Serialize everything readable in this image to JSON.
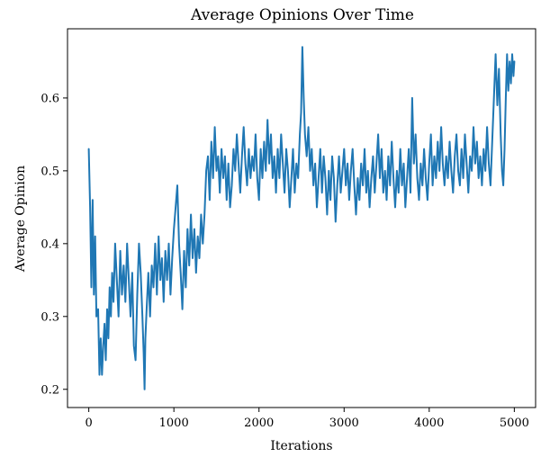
{
  "chart_data": {
    "type": "line",
    "title": "Average Opinions Over Time",
    "xlabel": "Iterations",
    "ylabel": "Average Opinion",
    "xlim": [
      -250,
      5250
    ],
    "ylim": [
      0.175,
      0.695
    ],
    "xticks": [
      0,
      1000,
      2000,
      3000,
      4000,
      5000
    ],
    "yticks": [
      0.2,
      0.3,
      0.4,
      0.5,
      0.6
    ],
    "ytick_labels": [
      "0.2",
      "0.3",
      "0.4",
      "0.5",
      "0.6"
    ],
    "grid": false,
    "series": [
      {
        "color": "#1f77b4",
        "points": [
          [
            0,
            0.53
          ],
          [
            15,
            0.45
          ],
          [
            30,
            0.34
          ],
          [
            45,
            0.46
          ],
          [
            60,
            0.33
          ],
          [
            75,
            0.41
          ],
          [
            90,
            0.3
          ],
          [
            110,
            0.31
          ],
          [
            125,
            0.22
          ],
          [
            140,
            0.27
          ],
          [
            155,
            0.22
          ],
          [
            170,
            0.26
          ],
          [
            185,
            0.29
          ],
          [
            200,
            0.24
          ],
          [
            215,
            0.31
          ],
          [
            230,
            0.27
          ],
          [
            245,
            0.34
          ],
          [
            260,
            0.3
          ],
          [
            275,
            0.36
          ],
          [
            290,
            0.32
          ],
          [
            310,
            0.4
          ],
          [
            330,
            0.35
          ],
          [
            350,
            0.3
          ],
          [
            370,
            0.39
          ],
          [
            390,
            0.33
          ],
          [
            410,
            0.37
          ],
          [
            430,
            0.32
          ],
          [
            450,
            0.4
          ],
          [
            470,
            0.35
          ],
          [
            490,
            0.3
          ],
          [
            510,
            0.36
          ],
          [
            530,
            0.26
          ],
          [
            550,
            0.24
          ],
          [
            570,
            0.33
          ],
          [
            590,
            0.4
          ],
          [
            610,
            0.36
          ],
          [
            630,
            0.3
          ],
          [
            645,
            0.25
          ],
          [
            655,
            0.2
          ],
          [
            665,
            0.27
          ],
          [
            680,
            0.31
          ],
          [
            700,
            0.36
          ],
          [
            720,
            0.3
          ],
          [
            740,
            0.37
          ],
          [
            760,
            0.34
          ],
          [
            780,
            0.4
          ],
          [
            800,
            0.33
          ],
          [
            820,
            0.41
          ],
          [
            840,
            0.35
          ],
          [
            860,
            0.38
          ],
          [
            880,
            0.32
          ],
          [
            900,
            0.39
          ],
          [
            920,
            0.35
          ],
          [
            940,
            0.4
          ],
          [
            960,
            0.33
          ],
          [
            980,
            0.38
          ],
          [
            1000,
            0.42
          ],
          [
            1020,
            0.45
          ],
          [
            1040,
            0.48
          ],
          [
            1060,
            0.4
          ],
          [
            1080,
            0.36
          ],
          [
            1100,
            0.31
          ],
          [
            1120,
            0.39
          ],
          [
            1140,
            0.34
          ],
          [
            1160,
            0.42
          ],
          [
            1180,
            0.37
          ],
          [
            1200,
            0.44
          ],
          [
            1220,
            0.38
          ],
          [
            1240,
            0.42
          ],
          [
            1260,
            0.36
          ],
          [
            1280,
            0.41
          ],
          [
            1300,
            0.38
          ],
          [
            1320,
            0.44
          ],
          [
            1340,
            0.4
          ],
          [
            1360,
            0.44
          ],
          [
            1380,
            0.5
          ],
          [
            1400,
            0.52
          ],
          [
            1420,
            0.46
          ],
          [
            1440,
            0.54
          ],
          [
            1460,
            0.49
          ],
          [
            1480,
            0.56
          ],
          [
            1500,
            0.5
          ],
          [
            1520,
            0.52
          ],
          [
            1540,
            0.47
          ],
          [
            1560,
            0.53
          ],
          [
            1580,
            0.49
          ],
          [
            1600,
            0.52
          ],
          [
            1620,
            0.46
          ],
          [
            1640,
            0.51
          ],
          [
            1660,
            0.45
          ],
          [
            1680,
            0.48
          ],
          [
            1700,
            0.53
          ],
          [
            1720,
            0.5
          ],
          [
            1740,
            0.55
          ],
          [
            1760,
            0.51
          ],
          [
            1780,
            0.47
          ],
          [
            1800,
            0.52
          ],
          [
            1820,
            0.56
          ],
          [
            1840,
            0.51
          ],
          [
            1860,
            0.48
          ],
          [
            1880,
            0.53
          ],
          [
            1900,
            0.49
          ],
          [
            1920,
            0.52
          ],
          [
            1940,
            0.5
          ],
          [
            1960,
            0.55
          ],
          [
            1980,
            0.49
          ],
          [
            2000,
            0.46
          ],
          [
            2020,
            0.53
          ],
          [
            2040,
            0.49
          ],
          [
            2060,
            0.54
          ],
          [
            2080,
            0.5
          ],
          [
            2100,
            0.57
          ],
          [
            2120,
            0.51
          ],
          [
            2140,
            0.55
          ],
          [
            2160,
            0.49
          ],
          [
            2180,
            0.52
          ],
          [
            2200,
            0.47
          ],
          [
            2220,
            0.53
          ],
          [
            2240,
            0.49
          ],
          [
            2260,
            0.55
          ],
          [
            2280,
            0.51
          ],
          [
            2300,
            0.47
          ],
          [
            2320,
            0.53
          ],
          [
            2340,
            0.5
          ],
          [
            2360,
            0.45
          ],
          [
            2380,
            0.49
          ],
          [
            2400,
            0.53
          ],
          [
            2420,
            0.47
          ],
          [
            2440,
            0.51
          ],
          [
            2460,
            0.49
          ],
          [
            2480,
            0.55
          ],
          [
            2495,
            0.58
          ],
          [
            2510,
            0.67
          ],
          [
            2525,
            0.6
          ],
          [
            2540,
            0.55
          ],
          [
            2560,
            0.52
          ],
          [
            2580,
            0.56
          ],
          [
            2600,
            0.5
          ],
          [
            2620,
            0.53
          ],
          [
            2640,
            0.48
          ],
          [
            2660,
            0.51
          ],
          [
            2680,
            0.45
          ],
          [
            2700,
            0.49
          ],
          [
            2720,
            0.53
          ],
          [
            2740,
            0.47
          ],
          [
            2760,
            0.52
          ],
          [
            2780,
            0.49
          ],
          [
            2800,
            0.44
          ],
          [
            2820,
            0.5
          ],
          [
            2840,
            0.46
          ],
          [
            2860,
            0.52
          ],
          [
            2880,
            0.49
          ],
          [
            2900,
            0.43
          ],
          [
            2920,
            0.48
          ],
          [
            2940,
            0.52
          ],
          [
            2960,
            0.47
          ],
          [
            2980,
            0.5
          ],
          [
            3000,
            0.53
          ],
          [
            3020,
            0.48
          ],
          [
            3040,
            0.51
          ],
          [
            3060,
            0.46
          ],
          [
            3080,
            0.5
          ],
          [
            3100,
            0.53
          ],
          [
            3120,
            0.48
          ],
          [
            3140,
            0.44
          ],
          [
            3160,
            0.49
          ],
          [
            3180,
            0.46
          ],
          [
            3200,
            0.51
          ],
          [
            3220,
            0.48
          ],
          [
            3240,
            0.53
          ],
          [
            3260,
            0.47
          ],
          [
            3280,
            0.5
          ],
          [
            3300,
            0.45
          ],
          [
            3320,
            0.49
          ],
          [
            3340,
            0.52
          ],
          [
            3360,
            0.47
          ],
          [
            3380,
            0.51
          ],
          [
            3400,
            0.55
          ],
          [
            3420,
            0.49
          ],
          [
            3440,
            0.53
          ],
          [
            3460,
            0.47
          ],
          [
            3480,
            0.5
          ],
          [
            3500,
            0.46
          ],
          [
            3520,
            0.52
          ],
          [
            3540,
            0.48
          ],
          [
            3560,
            0.54
          ],
          [
            3580,
            0.49
          ],
          [
            3600,
            0.45
          ],
          [
            3620,
            0.5
          ],
          [
            3640,
            0.47
          ],
          [
            3660,
            0.53
          ],
          [
            3680,
            0.48
          ],
          [
            3700,
            0.51
          ],
          [
            3720,
            0.45
          ],
          [
            3740,
            0.49
          ],
          [
            3760,
            0.53
          ],
          [
            3780,
            0.47
          ],
          [
            3800,
            0.6
          ],
          [
            3820,
            0.51
          ],
          [
            3840,
            0.55
          ],
          [
            3860,
            0.49
          ],
          [
            3880,
            0.46
          ],
          [
            3900,
            0.51
          ],
          [
            3920,
            0.48
          ],
          [
            3940,
            0.53
          ],
          [
            3960,
            0.49
          ],
          [
            3980,
            0.46
          ],
          [
            4000,
            0.51
          ],
          [
            4020,
            0.55
          ],
          [
            4040,
            0.48
          ],
          [
            4060,
            0.52
          ],
          [
            4080,
            0.49
          ],
          [
            4100,
            0.54
          ],
          [
            4120,
            0.5
          ],
          [
            4140,
            0.56
          ],
          [
            4160,
            0.51
          ],
          [
            4180,
            0.48
          ],
          [
            4200,
            0.52
          ],
          [
            4220,
            0.49
          ],
          [
            4240,
            0.54
          ],
          [
            4260,
            0.5
          ],
          [
            4280,
            0.47
          ],
          [
            4300,
            0.52
          ],
          [
            4320,
            0.55
          ],
          [
            4340,
            0.5
          ],
          [
            4360,
            0.48
          ],
          [
            4380,
            0.53
          ],
          [
            4400,
            0.49
          ],
          [
            4420,
            0.55
          ],
          [
            4440,
            0.51
          ],
          [
            4460,
            0.47
          ],
          [
            4480,
            0.52
          ],
          [
            4500,
            0.5
          ],
          [
            4520,
            0.56
          ],
          [
            4540,
            0.51
          ],
          [
            4560,
            0.54
          ],
          [
            4580,
            0.49
          ],
          [
            4600,
            0.52
          ],
          [
            4620,
            0.48
          ],
          [
            4640,
            0.53
          ],
          [
            4660,
            0.5
          ],
          [
            4680,
            0.56
          ],
          [
            4700,
            0.51
          ],
          [
            4720,
            0.48
          ],
          [
            4740,
            0.54
          ],
          [
            4760,
            0.6
          ],
          [
            4780,
            0.66
          ],
          [
            4800,
            0.59
          ],
          [
            4820,
            0.64
          ],
          [
            4840,
            0.55
          ],
          [
            4855,
            0.5
          ],
          [
            4870,
            0.48
          ],
          [
            4885,
            0.53
          ],
          [
            4900,
            0.6
          ],
          [
            4915,
            0.66
          ],
          [
            4930,
            0.61
          ],
          [
            4945,
            0.65
          ],
          [
            4960,
            0.62
          ],
          [
            4975,
            0.66
          ],
          [
            4990,
            0.63
          ],
          [
            5000,
            0.65
          ]
        ]
      }
    ]
  }
}
